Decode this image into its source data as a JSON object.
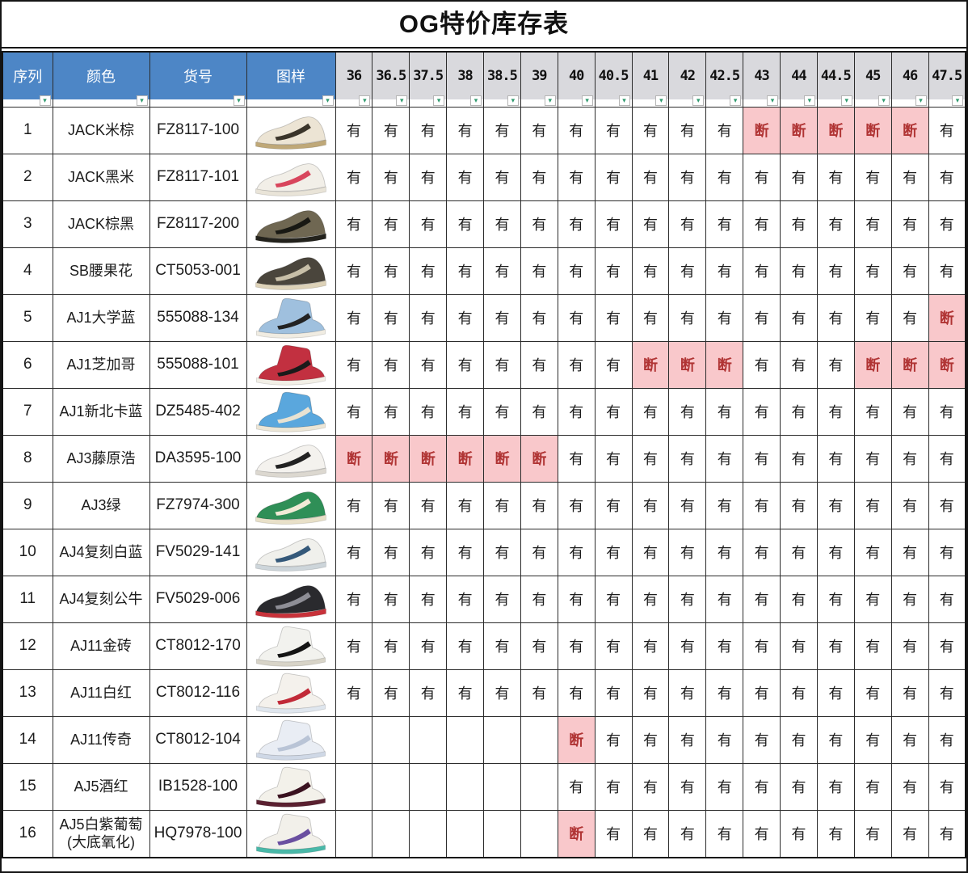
{
  "title": "OG特价库存表",
  "columns": {
    "seq": "序列",
    "color": "颜色",
    "code": "货号",
    "image": "图样"
  },
  "sizes": [
    "36",
    "36.5",
    "37.5",
    "38",
    "38.5",
    "39",
    "40",
    "40.5",
    "41",
    "42",
    "42.5",
    "43",
    "44",
    "44.5",
    "45",
    "46",
    "47.5"
  ],
  "legend": {
    "available": "有",
    "out_of_stock": "断"
  },
  "filter_icon": "▾",
  "colors": {
    "header_blue": "#4d86c6",
    "size_header_gray": "#d9d9dd",
    "out_of_stock_bg": "#f9c8cb",
    "out_of_stock_text": "#b03434",
    "grid_line": "#2c2c2c"
  },
  "rows": [
    {
      "seq": "1",
      "color": "JACK米棕",
      "code": "FZ8117-100",
      "shoe": {
        "type": "low",
        "body": "#ece4d4",
        "accent": "#3a342a",
        "sole": "#bfa878"
      },
      "stock": [
        "有",
        "有",
        "有",
        "有",
        "有",
        "有",
        "有",
        "有",
        "有",
        "有",
        "有",
        "断",
        "断",
        "断",
        "断",
        "断",
        "有"
      ]
    },
    {
      "seq": "2",
      "color": "JACK黑米",
      "code": "FZ8117-101",
      "shoe": {
        "type": "low",
        "body": "#f2efe8",
        "accent": "#d8455c",
        "sole": "#e9e4d8"
      },
      "stock": [
        "有",
        "有",
        "有",
        "有",
        "有",
        "有",
        "有",
        "有",
        "有",
        "有",
        "有",
        "有",
        "有",
        "有",
        "有",
        "有",
        "有"
      ]
    },
    {
      "seq": "3",
      "color": "JACK棕黑",
      "code": "FZ8117-200",
      "shoe": {
        "type": "low",
        "body": "#6f6752",
        "accent": "#181813",
        "sole": "#23221c"
      },
      "stock": [
        "有",
        "有",
        "有",
        "有",
        "有",
        "有",
        "有",
        "有",
        "有",
        "有",
        "有",
        "有",
        "有",
        "有",
        "有",
        "有",
        "有"
      ]
    },
    {
      "seq": "4",
      "color": "SB腰果花",
      "code": "CT5053-001",
      "shoe": {
        "type": "low",
        "body": "#4a453c",
        "accent": "#c8bfa8",
        "sole": "#ddd2b8"
      },
      "stock": [
        "有",
        "有",
        "有",
        "有",
        "有",
        "有",
        "有",
        "有",
        "有",
        "有",
        "有",
        "有",
        "有",
        "有",
        "有",
        "有",
        "有"
      ]
    },
    {
      "seq": "5",
      "color": "AJ1大学蓝",
      "code": "555088-134",
      "shoe": {
        "type": "high",
        "body": "#9fc0de",
        "accent": "#222222",
        "sole": "#f0ece2"
      },
      "stock": [
        "有",
        "有",
        "有",
        "有",
        "有",
        "有",
        "有",
        "有",
        "有",
        "有",
        "有",
        "有",
        "有",
        "有",
        "有",
        "有",
        "断"
      ]
    },
    {
      "seq": "6",
      "color": "AJ1芝加哥",
      "code": "555088-101",
      "shoe": {
        "type": "high",
        "body": "#c23040",
        "accent": "#1a1a1a",
        "sole": "#f2efe6"
      },
      "stock": [
        "有",
        "有",
        "有",
        "有",
        "有",
        "有",
        "有",
        "有",
        "断",
        "断",
        "断",
        "有",
        "有",
        "有",
        "断",
        "断",
        "断"
      ]
    },
    {
      "seq": "7",
      "color": "AJ1新北卡蓝",
      "code": "DZ5485-402",
      "shoe": {
        "type": "high",
        "body": "#5aa7dd",
        "accent": "#e8e2d2",
        "sole": "#ece6d6"
      },
      "stock": [
        "有",
        "有",
        "有",
        "有",
        "有",
        "有",
        "有",
        "有",
        "有",
        "有",
        "有",
        "有",
        "有",
        "有",
        "有",
        "有",
        "有"
      ]
    },
    {
      "seq": "8",
      "color": "AJ3藤原浩",
      "code": "DA3595-100",
      "shoe": {
        "type": "low",
        "body": "#f4f2ee",
        "accent": "#222222",
        "sole": "#dcd8d0"
      },
      "stock": [
        "断",
        "断",
        "断",
        "断",
        "断",
        "断",
        "有",
        "有",
        "有",
        "有",
        "有",
        "有",
        "有",
        "有",
        "有",
        "有",
        "有"
      ]
    },
    {
      "seq": "9",
      "color": "AJ3绿",
      "code": "FZ7974-300",
      "shoe": {
        "type": "low",
        "body": "#2f8f57",
        "accent": "#f1ead6",
        "sole": "#e8e0c8"
      },
      "stock": [
        "有",
        "有",
        "有",
        "有",
        "有",
        "有",
        "有",
        "有",
        "有",
        "有",
        "有",
        "有",
        "有",
        "有",
        "有",
        "有",
        "有"
      ]
    },
    {
      "seq": "10",
      "color": "AJ4复刻白蓝",
      "code": "FV5029-141",
      "shoe": {
        "type": "low",
        "body": "#f0f0ec",
        "accent": "#35597a",
        "sole": "#cdd5da"
      },
      "stock": [
        "有",
        "有",
        "有",
        "有",
        "有",
        "有",
        "有",
        "有",
        "有",
        "有",
        "有",
        "有",
        "有",
        "有",
        "有",
        "有",
        "有"
      ]
    },
    {
      "seq": "11",
      "color": "AJ4复刻公牛",
      "code": "FV5029-006",
      "shoe": {
        "type": "low",
        "body": "#2a2a2e",
        "accent": "#8e8e96",
        "sole": "#c8323a"
      },
      "stock": [
        "有",
        "有",
        "有",
        "有",
        "有",
        "有",
        "有",
        "有",
        "有",
        "有",
        "有",
        "有",
        "有",
        "有",
        "有",
        "有",
        "有"
      ]
    },
    {
      "seq": "12",
      "color": "AJ11金砖",
      "code": "CT8012-170",
      "shoe": {
        "type": "high",
        "body": "#f2f2ee",
        "accent": "#141414",
        "sole": "#d8d4c8"
      },
      "stock": [
        "有",
        "有",
        "有",
        "有",
        "有",
        "有",
        "有",
        "有",
        "有",
        "有",
        "有",
        "有",
        "有",
        "有",
        "有",
        "有",
        "有"
      ]
    },
    {
      "seq": "13",
      "color": "AJ11白红",
      "code": "CT8012-116",
      "shoe": {
        "type": "high",
        "body": "#f4f1ec",
        "accent": "#c12a38",
        "sole": "#dfe6ee"
      },
      "stock": [
        "有",
        "有",
        "有",
        "有",
        "有",
        "有",
        "有",
        "有",
        "有",
        "有",
        "有",
        "有",
        "有",
        "有",
        "有",
        "有",
        "有"
      ]
    },
    {
      "seq": "14",
      "color": "AJ11传奇",
      "code": "CT8012-104",
      "shoe": {
        "type": "high",
        "body": "#e9edf4",
        "accent": "#b9c4d6",
        "sole": "#cfd8e6"
      },
      "stock": [
        "",
        "",
        "",
        "",
        "",
        "",
        "断",
        "有",
        "有",
        "有",
        "有",
        "有",
        "有",
        "有",
        "有",
        "有",
        "有"
      ]
    },
    {
      "seq": "15",
      "color": "AJ5酒红",
      "code": "IB1528-100",
      "shoe": {
        "type": "high",
        "body": "#f3f1ea",
        "accent": "#3a1220",
        "sole": "#5a2030"
      },
      "stock": [
        "",
        "",
        "",
        "",
        "",
        "",
        "有",
        "有",
        "有",
        "有",
        "有",
        "有",
        "有",
        "有",
        "有",
        "有",
        "有"
      ]
    },
    {
      "seq": "16",
      "color": "AJ5白紫葡萄\n(大底氧化)",
      "code": "HQ7978-100",
      "shoe": {
        "type": "high",
        "body": "#f2f0ea",
        "accent": "#6a4fa0",
        "sole": "#49b8a8"
      },
      "stock": [
        "",
        "",
        "",
        "",
        "",
        "",
        "断",
        "有",
        "有",
        "有",
        "有",
        "有",
        "有",
        "有",
        "有",
        "有",
        "有"
      ]
    }
  ]
}
